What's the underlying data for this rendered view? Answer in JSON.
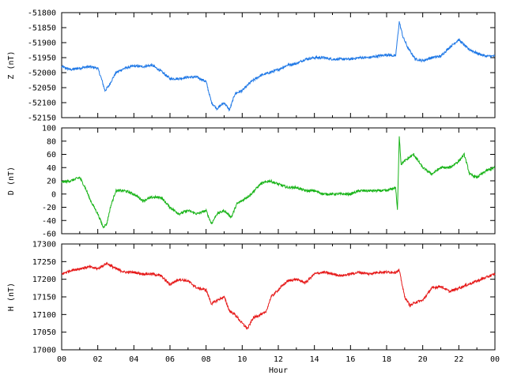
{
  "chart_data": [
    {
      "type": "line",
      "ylabel": "Z (nT)",
      "ylim": [
        -52150,
        -51800
      ],
      "yticks": [
        -52150,
        -52100,
        -52050,
        -52000,
        -51950,
        -51900,
        -51850,
        -51800
      ],
      "xlim": [
        0,
        24
      ],
      "color": "#1f78e6",
      "series": [
        {
          "x": [
            0,
            0.5,
            1,
            1.5,
            2,
            2.2,
            2.4,
            2.6,
            3,
            3.5,
            4,
            4.5,
            5,
            5.5,
            6,
            6.5,
            7,
            7.5,
            8,
            8.3,
            8.6,
            9,
            9.3,
            9.6,
            10,
            10.5,
            11,
            11.5,
            12,
            12.5,
            13,
            13.5,
            14,
            14.5,
            15,
            15.5,
            16,
            16.5,
            17,
            17.5,
            18,
            18.5,
            18.7,
            18.9,
            19.2,
            19.6,
            20,
            20.5,
            21,
            21.5,
            22,
            22.5,
            23,
            23.5,
            24
          ],
          "y": [
            -51980,
            -51990,
            -51985,
            -51980,
            -51985,
            -52020,
            -52060,
            -52045,
            -52000,
            -51985,
            -51978,
            -51980,
            -51975,
            -51995,
            -52020,
            -52020,
            -52015,
            -52015,
            -52030,
            -52100,
            -52120,
            -52100,
            -52125,
            -52070,
            -52060,
            -52030,
            -52010,
            -52000,
            -51990,
            -51975,
            -51970,
            -51955,
            -51950,
            -51950,
            -51955,
            -51955,
            -51955,
            -51950,
            -51950,
            -51945,
            -51940,
            -51945,
            -51830,
            -51880,
            -51920,
            -51955,
            -51960,
            -51950,
            -51945,
            -51915,
            -51890,
            -51920,
            -51935,
            -51945,
            -51945
          ]
        }
      ]
    },
    {
      "type": "line",
      "ylabel": "D (nT)",
      "ylim": [
        -60,
        100
      ],
      "yticks": [
        -60,
        -40,
        -20,
        0,
        20,
        40,
        60,
        80,
        100
      ],
      "xlim": [
        0,
        24
      ],
      "color": "#19b419",
      "series": [
        {
          "x": [
            0,
            0.5,
            1,
            1.3,
            1.6,
            2,
            2.3,
            2.5,
            2.7,
            3,
            3.5,
            4,
            4.5,
            5,
            5.5,
            6,
            6.5,
            7,
            7.5,
            8,
            8.3,
            8.6,
            9,
            9.4,
            9.7,
            10,
            10.5,
            11,
            11.5,
            12,
            12.5,
            13,
            13.5,
            14,
            14.5,
            15,
            15.5,
            16,
            16.5,
            17,
            17.5,
            18,
            18.5,
            18.6,
            18.7,
            18.8,
            19,
            19.5,
            20,
            20.5,
            21,
            21.5,
            22,
            22.3,
            22.6,
            23,
            23.5,
            24
          ],
          "y": [
            18,
            20,
            25,
            10,
            -10,
            -30,
            -50,
            -45,
            -20,
            5,
            5,
            0,
            -10,
            -5,
            -5,
            -20,
            -30,
            -25,
            -30,
            -25,
            -45,
            -30,
            -25,
            -35,
            -15,
            -10,
            0,
            15,
            20,
            15,
            10,
            10,
            5,
            5,
            0,
            0,
            0,
            0,
            5,
            5,
            5,
            5,
            10,
            -25,
            90,
            45,
            50,
            60,
            40,
            30,
            40,
            40,
            50,
            60,
            30,
            25,
            35,
            40
          ]
        }
      ]
    },
    {
      "type": "line",
      "ylabel": "H (nT)",
      "ylim": [
        17000,
        17300
      ],
      "yticks": [
        17000,
        17050,
        17100,
        17150,
        17200,
        17250,
        17300
      ],
      "xlim": [
        0,
        24
      ],
      "xlabel": "Hour",
      "xticks": [
        "00",
        "02",
        "04",
        "06",
        "08",
        "10",
        "12",
        "14",
        "16",
        "18",
        "20",
        "22",
        "00"
      ],
      "color": "#e61919",
      "series": [
        {
          "x": [
            0,
            0.5,
            1,
            1.5,
            2,
            2.5,
            3,
            3.5,
            4,
            4.5,
            5,
            5.5,
            6,
            6.5,
            7,
            7.5,
            8,
            8.3,
            8.6,
            9,
            9.3,
            9.6,
            10,
            10.3,
            10.6,
            11,
            11.3,
            11.6,
            12,
            12.5,
            13,
            13.5,
            14,
            14.5,
            15,
            15.5,
            16,
            16.5,
            17,
            17.5,
            18,
            18.5,
            18.7,
            19,
            19.3,
            19.6,
            20,
            20.5,
            21,
            21.5,
            22,
            22.5,
            23,
            23.5,
            24
          ],
          "y": [
            17215,
            17225,
            17230,
            17235,
            17230,
            17245,
            17230,
            17220,
            17220,
            17215,
            17215,
            17210,
            17185,
            17200,
            17195,
            17175,
            17170,
            17130,
            17140,
            17150,
            17110,
            17100,
            17075,
            17060,
            17090,
            17100,
            17105,
            17150,
            17170,
            17195,
            17200,
            17190,
            17215,
            17220,
            17215,
            17210,
            17215,
            17220,
            17215,
            17220,
            17220,
            17220,
            17225,
            17150,
            17125,
            17135,
            17140,
            17175,
            17180,
            17165,
            17175,
            17185,
            17195,
            17205,
            17215
          ]
        }
      ]
    }
  ]
}
